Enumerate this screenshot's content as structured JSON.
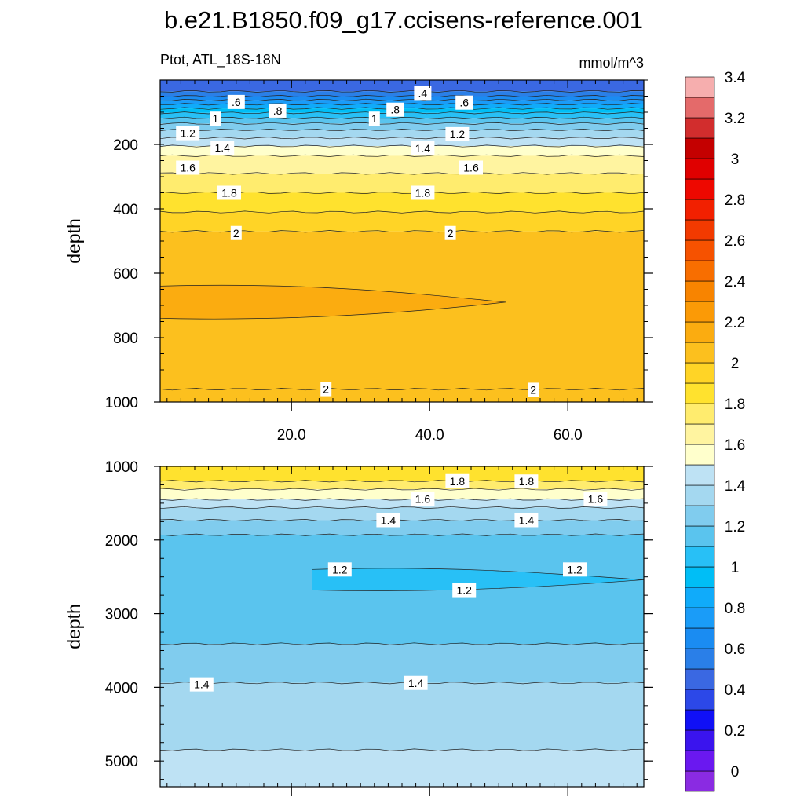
{
  "title": "b.e21.B1850.f09_g17.ccisens-reference.001",
  "subtitle_left": "Ptot, ATL_18S-18N",
  "subtitle_right": "mmol/m^3",
  "chart_data": {
    "type": "heatmap",
    "title": "b.e21.B1850.f09_g17.ccisens-reference.001",
    "variable": "Ptot, ATL_18S-18N",
    "units": "mmol/m^3",
    "x_ticks": [
      20,
      40,
      60
    ],
    "x_tick_labels": [
      "20.0",
      "40.0",
      "60.0"
    ],
    "panels": [
      {
        "name": "upper",
        "ylabel": "depth",
        "xlim": [
          1,
          71
        ],
        "ylim": [
          1000,
          0
        ],
        "y_ticks": [
          200,
          400,
          600,
          800,
          1000
        ],
        "y_tick_labels": [
          "200",
          "400",
          "600",
          "800",
          "1000"
        ],
        "bands": [
          {
            "top": 0,
            "bottom": 35,
            "value": 0.5
          },
          {
            "top": 35,
            "bottom": 50,
            "value": 0.6
          },
          {
            "top": 50,
            "bottom": 62,
            "value": 0.7
          },
          {
            "top": 62,
            "bottom": 75,
            "value": 0.8
          },
          {
            "top": 75,
            "bottom": 88,
            "value": 0.9
          },
          {
            "top": 88,
            "bottom": 102,
            "value": 1.0
          },
          {
            "top": 102,
            "bottom": 118,
            "value": 1.1
          },
          {
            "top": 118,
            "bottom": 135,
            "value": 1.2
          },
          {
            "top": 135,
            "bottom": 155,
            "value": 1.3
          },
          {
            "top": 155,
            "bottom": 180,
            "value": 1.4
          },
          {
            "top": 180,
            "bottom": 205,
            "value": 1.5
          },
          {
            "top": 205,
            "bottom": 235,
            "value": 1.6
          },
          {
            "top": 235,
            "bottom": 290,
            "value": 1.7
          },
          {
            "top": 290,
            "bottom": 350,
            "value": 1.8
          },
          {
            "top": 350,
            "bottom": 410,
            "value": 1.9
          },
          {
            "top": 410,
            "bottom": 470,
            "value": 2.0
          },
          {
            "top": 470,
            "bottom": 1000,
            "value": 2.1
          }
        ],
        "patches": [
          {
            "x_start": 1,
            "x_end": 51,
            "top": 640,
            "bottom": 740,
            "value": 2.2
          }
        ],
        "lines": [
          {
            "y": 35
          },
          {
            "y": 50
          },
          {
            "y": 62
          },
          {
            "y": 75
          },
          {
            "y": 88
          },
          {
            "y": 102
          },
          {
            "y": 118
          },
          {
            "y": 135
          },
          {
            "y": 155
          },
          {
            "y": 180
          },
          {
            "y": 205
          },
          {
            "y": 235
          },
          {
            "y": 290
          },
          {
            "y": 350
          },
          {
            "y": 410
          },
          {
            "y": 470
          },
          {
            "y": 960
          }
        ],
        "labels": [
          {
            "text": ".4",
            "x": 39,
            "y": 40
          },
          {
            "text": ".6",
            "x": 12,
            "y": 68
          },
          {
            "text": ".6",
            "x": 45,
            "y": 70
          },
          {
            "text": ".8",
            "x": 18,
            "y": 95
          },
          {
            "text": ".8",
            "x": 35,
            "y": 92
          },
          {
            "text": "1",
            "x": 9,
            "y": 120
          },
          {
            "text": "1",
            "x": 32,
            "y": 120
          },
          {
            "text": "1.2",
            "x": 5,
            "y": 165
          },
          {
            "text": "1.2",
            "x": 44,
            "y": 168
          },
          {
            "text": "1.4",
            "x": 10,
            "y": 210
          },
          {
            "text": "1.4",
            "x": 39,
            "y": 212
          },
          {
            "text": "1.6",
            "x": 5,
            "y": 272
          },
          {
            "text": "1.6",
            "x": 46,
            "y": 272
          },
          {
            "text": "1.8",
            "x": 11,
            "y": 350
          },
          {
            "text": "1.8",
            "x": 39,
            "y": 350
          },
          {
            "text": "2",
            "x": 12,
            "y": 475
          },
          {
            "text": "2",
            "x": 43,
            "y": 475
          },
          {
            "text": "2",
            "x": 25,
            "y": 960
          },
          {
            "text": "2",
            "x": 55,
            "y": 962
          }
        ]
      },
      {
        "name": "lower",
        "ylabel": "depth",
        "xlim": [
          1,
          71
        ],
        "ylim": [
          5350,
          1000
        ],
        "y_ticks": [
          1000,
          2000,
          3000,
          4000,
          5000
        ],
        "y_tick_labels": [
          "1000",
          "2000",
          "3000",
          "4000",
          "5000"
        ],
        "bands": [
          {
            "top": 1000,
            "bottom": 1200,
            "value": 1.9
          },
          {
            "top": 1200,
            "bottom": 1310,
            "value": 1.8
          },
          {
            "top": 1310,
            "bottom": 1450,
            "value": 1.6
          },
          {
            "top": 1450,
            "bottom": 1560,
            "value": 1.5
          },
          {
            "top": 1560,
            "bottom": 1730,
            "value": 1.4
          },
          {
            "top": 1730,
            "bottom": 1930,
            "value": 1.3
          },
          {
            "top": 1930,
            "bottom": 3410,
            "value": 1.2
          },
          {
            "top": 3410,
            "bottom": 3940,
            "value": 1.3
          },
          {
            "top": 3940,
            "bottom": 4850,
            "value": 1.4
          },
          {
            "top": 4850,
            "bottom": 5350,
            "value": 1.5
          }
        ],
        "patches": [
          {
            "x_start": 23,
            "x_end": 71,
            "top": 2400,
            "bottom": 2680,
            "value": 1.1
          }
        ],
        "lines": [
          {
            "y": 1200
          },
          {
            "y": 1310
          },
          {
            "y": 1450
          },
          {
            "y": 1560
          },
          {
            "y": 1730
          },
          {
            "y": 1930
          },
          {
            "y": 3410
          },
          {
            "y": 3940
          },
          {
            "y": 4850
          }
        ],
        "labels": [
          {
            "text": "1.8",
            "x": 44,
            "y": 1200
          },
          {
            "text": "1.8",
            "x": 54,
            "y": 1205
          },
          {
            "text": "1.6",
            "x": 39,
            "y": 1445
          },
          {
            "text": "1.6",
            "x": 64,
            "y": 1445
          },
          {
            "text": "1.4",
            "x": 34,
            "y": 1730
          },
          {
            "text": "1.4",
            "x": 54,
            "y": 1730
          },
          {
            "text": "1.2",
            "x": 27,
            "y": 2400
          },
          {
            "text": "1.2",
            "x": 61,
            "y": 2400
          },
          {
            "text": "1.2",
            "x": 45,
            "y": 2680
          },
          {
            "text": "1.4",
            "x": 7,
            "y": 3960
          },
          {
            "text": "1.4",
            "x": 38,
            "y": 3940
          }
        ]
      }
    ],
    "colorbar": {
      "levels": [
        0,
        0.1,
        0.2,
        0.3,
        0.4,
        0.5,
        0.6,
        0.7,
        0.8,
        0.9,
        1.0,
        1.1,
        1.2,
        1.3,
        1.4,
        1.5,
        1.6,
        1.7,
        1.8,
        1.9,
        2.0,
        2.1,
        2.2,
        2.3,
        2.4,
        2.5,
        2.6,
        2.7,
        2.8,
        2.9,
        3.0,
        3.1,
        3.2,
        3.3,
        3.4,
        3.5
      ],
      "tick_labels": [
        "0",
        "0.2",
        "0.4",
        "0.6",
        "0.8",
        "1",
        "1.2",
        "1.4",
        "1.6",
        "1.8",
        "2",
        "2.2",
        "2.4",
        "2.6",
        "2.8",
        "3",
        "3.2",
        "3.4"
      ],
      "colors": [
        "#8a2be2",
        "#6a18f0",
        "#3a14ee",
        "#1010f6",
        "#2c48e8",
        "#3a68e2",
        "#2a7fe8",
        "#1a8cf2",
        "#1a9cf8",
        "#10abfa",
        "#00bef6",
        "#28c0f6",
        "#5ac4ee",
        "#80ccee",
        "#a4d8f0",
        "#bee2f4",
        "#ffffcc",
        "#fff4a0",
        "#ffec6e",
        "#ffe22e",
        "#ffd426",
        "#fcc01e",
        "#fbac10",
        "#fb9a06",
        "#f88400",
        "#f86e00",
        "#f65200",
        "#f23a00",
        "#f22000",
        "#ee0800",
        "#e00000",
        "#c40000",
        "#d22d2d",
        "#e46a6a",
        "#f6aeae"
      ]
    }
  }
}
